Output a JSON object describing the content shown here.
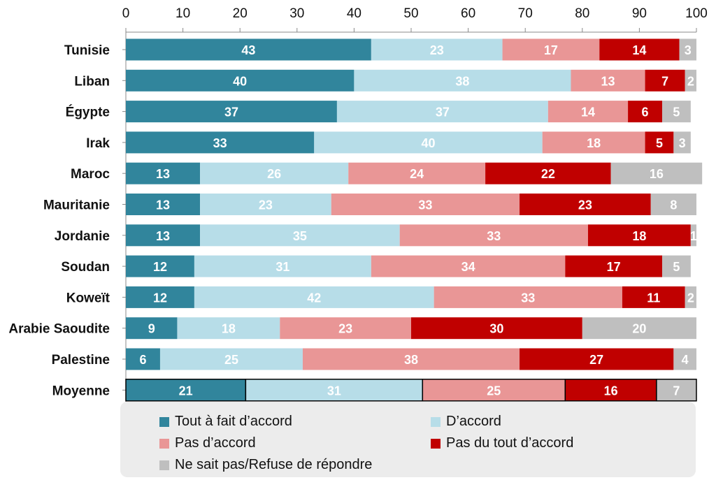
{
  "chart_data": {
    "type": "bar",
    "orientation": "horizontal",
    "stacked": true,
    "categories": [
      "Tunisie",
      "Liban",
      "Égypte",
      "Irak",
      "Maroc",
      "Mauritanie",
      "Jordanie",
      "Soudan",
      "Koweït",
      "Arabie Saoudite",
      "Palestine",
      "Moyenne"
    ],
    "series": [
      {
        "name": "Tout à fait d’accord",
        "color": "#31859c",
        "label_color": "#ffffff",
        "values": [
          43,
          40,
          37,
          33,
          13,
          13,
          13,
          12,
          12,
          9,
          6,
          21
        ]
      },
      {
        "name": "D’accord",
        "color": "#b7dde8",
        "label_color": "#ffffff",
        "values": [
          23,
          38,
          37,
          40,
          26,
          23,
          35,
          31,
          42,
          18,
          25,
          31
        ]
      },
      {
        "name": "Pas d’accord",
        "color": "#e99696",
        "label_color": "#ffffff",
        "values": [
          17,
          13,
          14,
          18,
          24,
          33,
          33,
          34,
          33,
          23,
          38,
          25
        ]
      },
      {
        "name": "Pas du tout d’accord",
        "color": "#c00000",
        "label_color": "#ffffff",
        "values": [
          14,
          7,
          6,
          5,
          22,
          23,
          18,
          17,
          11,
          30,
          27,
          16
        ]
      },
      {
        "name": "Ne sait pas/Refuse de répondre",
        "color": "#bfbfbf",
        "label_color": "#ffffff",
        "values": [
          3,
          2,
          5,
          3,
          16,
          8,
          1,
          5,
          2,
          20,
          4,
          7
        ]
      }
    ],
    "xlim": [
      0,
      100
    ],
    "xticks": [
      0,
      10,
      20,
      30,
      40,
      50,
      60,
      70,
      80,
      90,
      100
    ],
    "xlabel": "",
    "ylabel": "",
    "title": "",
    "grid": false,
    "legend_position": "bottom",
    "highlighted_category": "Moyenne"
  }
}
